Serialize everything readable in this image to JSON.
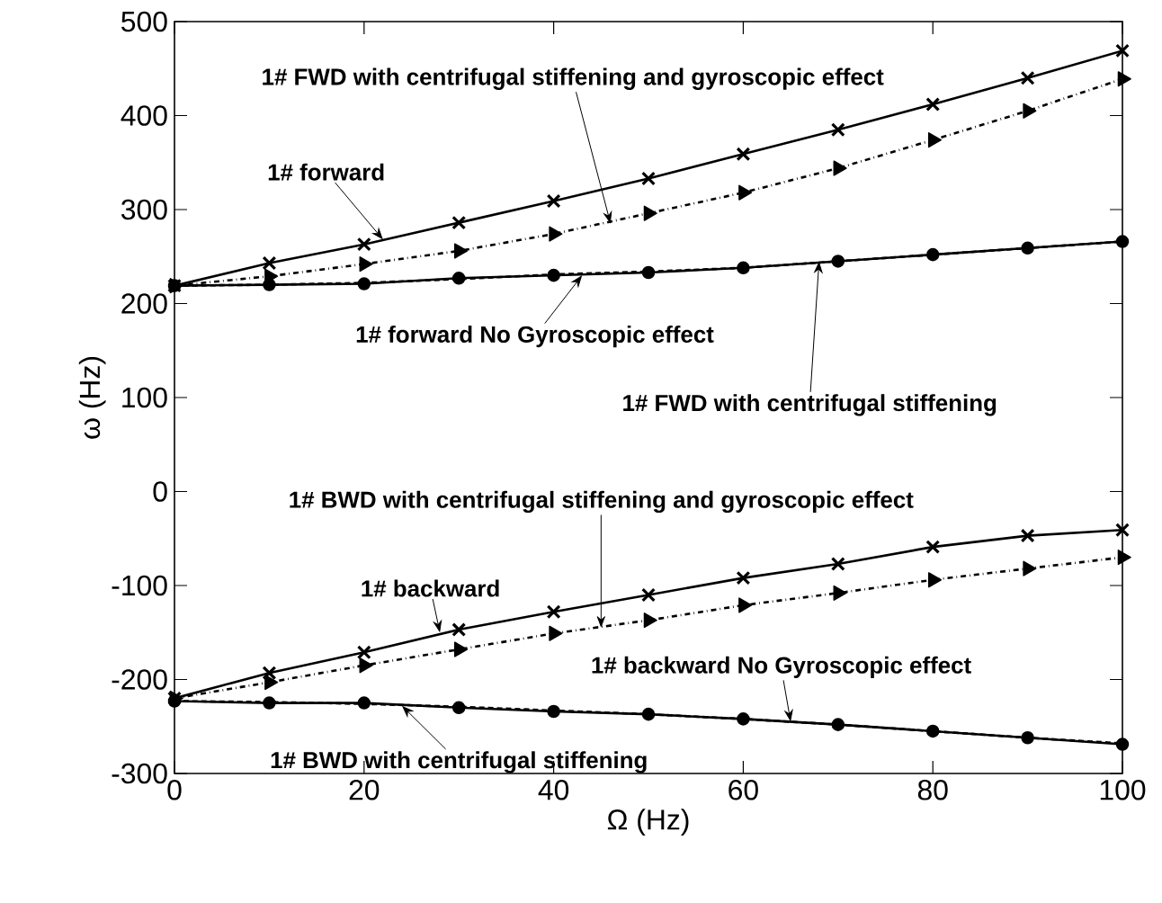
{
  "chart_data": {
    "type": "line",
    "xlabel": "Ω (Hz)",
    "ylabel": "ω (Hz)",
    "xlim": [
      0,
      100
    ],
    "ylim": [
      -300,
      500
    ],
    "xticks": [
      0,
      20,
      40,
      60,
      80,
      100
    ],
    "yticks": [
      -300,
      -200,
      -100,
      0,
      100,
      200,
      300,
      400,
      500
    ],
    "grid": false,
    "x": [
      0,
      10,
      20,
      30,
      40,
      50,
      60,
      70,
      80,
      90,
      100
    ],
    "series": [
      {
        "color": "#000000",
        "marker": "cross",
        "line_style": "solid",
        "values": [
          219,
          243,
          263,
          286,
          309,
          333,
          359,
          385,
          412,
          440,
          469
        ]
      },
      {
        "color": "#000000",
        "marker": "circle",
        "line_style": "solid",
        "values": [
          219,
          220,
          221,
          227,
          230,
          233,
          238,
          245,
          252,
          259,
          266
        ]
      },
      {
        "color": "#000000",
        "marker": "triangle",
        "line_style": "dashed",
        "values": [
          219,
          229,
          242,
          256,
          274,
          296,
          318,
          344,
          374,
          405,
          439
        ]
      },
      {
        "color": "#000000",
        "marker": "none",
        "line_style": "dotted",
        "values": [
          219,
          220,
          222,
          226,
          231,
          234,
          238,
          245,
          252,
          259,
          266
        ]
      },
      {
        "color": "#000000",
        "marker": "cross",
        "line_style": "solid",
        "values": [
          -220,
          -193,
          -171,
          -147,
          -128,
          -110,
          -92,
          -77,
          -59,
          -47,
          -41
        ]
      },
      {
        "color": "#000000",
        "marker": "triangle",
        "line_style": "dashed",
        "values": [
          -220,
          -203,
          -185,
          -168,
          -151,
          -137,
          -121,
          -108,
          -94,
          -82,
          -70
        ]
      },
      {
        "color": "#000000",
        "marker": "circle",
        "line_style": "solid",
        "values": [
          -223,
          -225,
          -225,
          -230,
          -234,
          -237,
          -242,
          -248,
          -255,
          -262,
          -269
        ]
      },
      {
        "color": "#000000",
        "marker": "none",
        "line_style": "dotted",
        "values": [
          -223,
          -224,
          -226,
          -229,
          -233,
          -237,
          -242,
          -248,
          -255,
          -262,
          -268
        ]
      }
    ],
    "annotations": [
      {
        "text": "1# FWD with centrifugal stiffening and gyroscopic effect",
        "x": 46,
        "y": 285
      },
      {
        "text": "1# forward",
        "x": 22,
        "y": 268
      },
      {
        "text": "1# forward No Gyroscopic effect",
        "x": 43,
        "y": 230
      },
      {
        "text": "1# FWD with centrifugal stiffening",
        "x": 68,
        "y": 245
      },
      {
        "text": "1# BWD with centrifugal stiffening and gyroscopic effect",
        "x": 45,
        "y": -145
      },
      {
        "text": "1# backward",
        "x": 28,
        "y": -150
      },
      {
        "text": "1# backward No Gyroscopic effect",
        "x": 65,
        "y": -245
      },
      {
        "text": "1# BWD with centrifugal stiffening",
        "x": 24,
        "y": -228
      }
    ]
  }
}
